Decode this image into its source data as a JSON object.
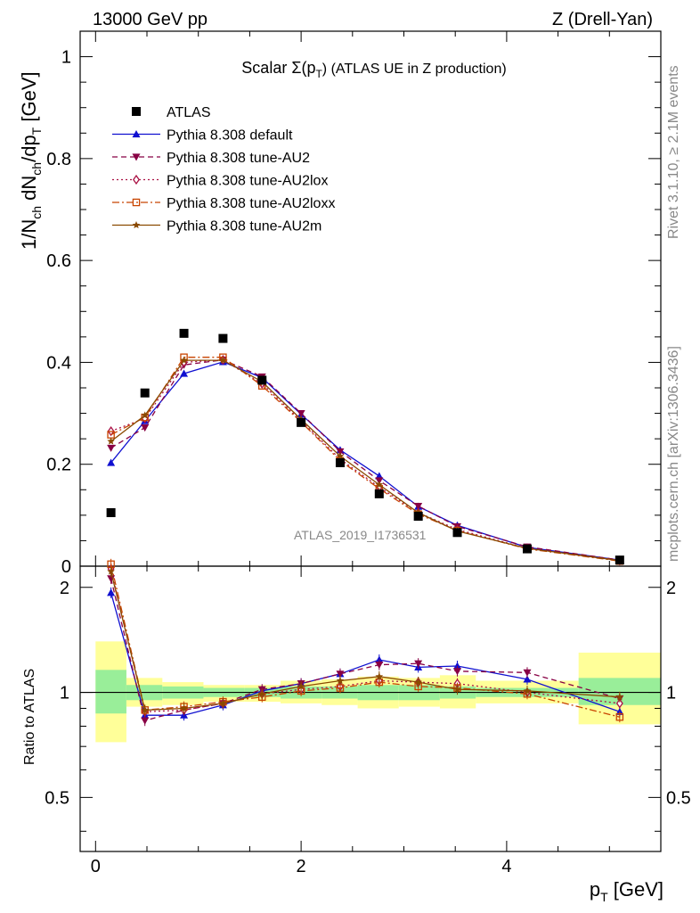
{
  "header": {
    "left": "13000 GeV pp",
    "right": "Z (Drell-Yan)"
  },
  "side_labels": {
    "rivet": "Rivet 3.1.10, ≥ 2.1M events",
    "mcplots": "mcplots.cern.ch [arXiv:1306.3436]"
  },
  "chart_data": {
    "type": "line",
    "title": "Scalar Σ(p",
    "title_sub": "T",
    "title_tail": ") (ATLAS UE in Z production)",
    "ylabel": "1/N_ch dN_ch/dp_T [GeV]",
    "xlabel": "p_T [GeV]",
    "xlim": [
      -0.15,
      5.5
    ],
    "ylim": [
      0,
      1.05
    ],
    "ratio_ylim": [
      0.35,
      2.3
    ],
    "ratio_ylabel": "Ratio to ATLAS",
    "watermark": "ATLAS_2019_I1736531",
    "x_ticks": [
      "0",
      "2",
      "4"
    ],
    "y_ticks": [
      "0",
      "0.2",
      "0.4",
      "0.6",
      "0.8",
      "1"
    ],
    "ratio_y_ticks": [
      "0.5",
      "1",
      "2"
    ],
    "x": [
      0.15,
      0.48,
      0.86,
      1.24,
      1.62,
      2.0,
      2.38,
      2.76,
      3.14,
      3.52,
      4.2,
      5.1
    ],
    "bin_edges": [
      0.0,
      0.3,
      0.65,
      1.05,
      1.45,
      1.8,
      2.2,
      2.55,
      2.95,
      3.35,
      3.7,
      4.7,
      5.5
    ],
    "data": {
      "name": "ATLAS",
      "values": [
        0.105,
        0.34,
        0.457,
        0.447,
        0.365,
        0.282,
        0.203,
        0.142,
        0.098,
        0.066,
        0.034,
        0.012
      ],
      "band_inner": [
        [
          0.87,
          1.16
        ],
        [
          0.95,
          1.05
        ],
        [
          0.96,
          1.04
        ],
        [
          0.97,
          1.03
        ],
        [
          0.97,
          1.03
        ],
        [
          0.96,
          1.04
        ],
        [
          0.96,
          1.04
        ],
        [
          0.95,
          1.05
        ],
        [
          0.95,
          1.05
        ],
        [
          0.96,
          1.04
        ],
        [
          0.97,
          1.03
        ],
        [
          0.92,
          1.1
        ]
      ],
      "band_outer": [
        [
          0.72,
          1.4
        ],
        [
          0.91,
          1.1
        ],
        [
          0.92,
          1.07
        ],
        [
          0.94,
          1.05
        ],
        [
          0.94,
          1.05
        ],
        [
          0.93,
          1.08
        ],
        [
          0.92,
          1.09
        ],
        [
          0.9,
          1.11
        ],
        [
          0.91,
          1.1
        ],
        [
          0.9,
          1.12
        ],
        [
          0.93,
          1.08
        ],
        [
          0.81,
          1.3
        ]
      ]
    },
    "series": [
      {
        "name": "Pythia 8.308 default",
        "color": "#1010d0",
        "dash": "",
        "marker": "triangle-up",
        "values": [
          0.203,
          0.285,
          0.378,
          0.401,
          0.37,
          0.298,
          0.228,
          0.177,
          0.117,
          0.08,
          0.037,
          0.012
        ],
        "ratio": [
          1.93,
          0.86,
          0.86,
          0.92,
          1.01,
          1.06,
          1.13,
          1.24,
          1.18,
          1.19,
          1.09,
          0.88
        ]
      },
      {
        "name": "Pythia 8.308 tune-AU2",
        "color": "#880044",
        "dash": "6,4",
        "marker": "triangle-down",
        "values": [
          0.232,
          0.272,
          0.395,
          0.405,
          0.372,
          0.3,
          0.225,
          0.168,
          0.118,
          0.078,
          0.038,
          0.012
        ],
        "ratio": [
          2.12,
          0.83,
          0.89,
          0.93,
          1.02,
          1.06,
          1.13,
          1.2,
          1.21,
          1.15,
          1.14,
          0.96
        ]
      },
      {
        "name": "Pythia 8.308 tune-AU2lox",
        "color": "#aa1144",
        "dash": "2,3",
        "marker": "diamond-open",
        "values": [
          0.265,
          0.29,
          0.4,
          0.405,
          0.358,
          0.285,
          0.21,
          0.155,
          0.105,
          0.072,
          0.035,
          0.011
        ],
        "ratio": [
          2.26,
          0.88,
          0.89,
          0.93,
          0.99,
          1.02,
          1.04,
          1.08,
          1.07,
          1.06,
          1.0,
          0.93
        ]
      },
      {
        "name": "Pythia 8.308 tune-AU2loxx",
        "color": "#c84400",
        "dash": "8,3,2,3",
        "marker": "square-open",
        "values": [
          0.258,
          0.292,
          0.41,
          0.41,
          0.354,
          0.283,
          0.207,
          0.152,
          0.102,
          0.07,
          0.034,
          0.01
        ],
        "ratio": [
          2.33,
          0.89,
          0.91,
          0.94,
          0.97,
          1.01,
          1.03,
          1.07,
          1.04,
          1.03,
          0.99,
          0.85
        ]
      },
      {
        "name": "Pythia 8.308 tune-AU2m",
        "color": "#8a4a00",
        "dash": "",
        "marker": "star",
        "values": [
          0.245,
          0.296,
          0.404,
          0.404,
          0.362,
          0.288,
          0.216,
          0.16,
          0.105,
          0.069,
          0.035,
          0.011
        ],
        "ratio": [
          2.22,
          0.89,
          0.9,
          0.93,
          0.99,
          1.04,
          1.08,
          1.11,
          1.07,
          1.02,
          1.01,
          0.97
        ]
      }
    ]
  }
}
